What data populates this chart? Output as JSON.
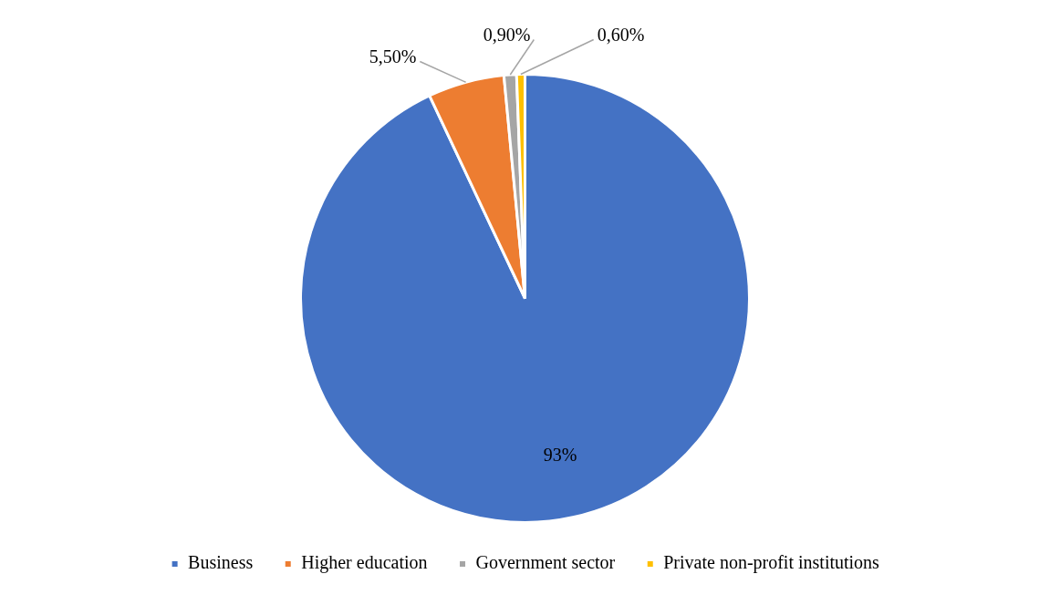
{
  "chart_data": {
    "type": "pie",
    "categories": [
      "Business",
      "Higher education",
      "Government sector",
      "Private non-profit institutions"
    ],
    "values": [
      93,
      5.5,
      0.9,
      0.6
    ],
    "colors": [
      "#4472c4",
      "#ed7d31",
      "#a5a5a5",
      "#ffc000"
    ],
    "value_labels": [
      "93%",
      "5,50%",
      "0,90%",
      "0,60%"
    ],
    "legend": "bottom"
  }
}
